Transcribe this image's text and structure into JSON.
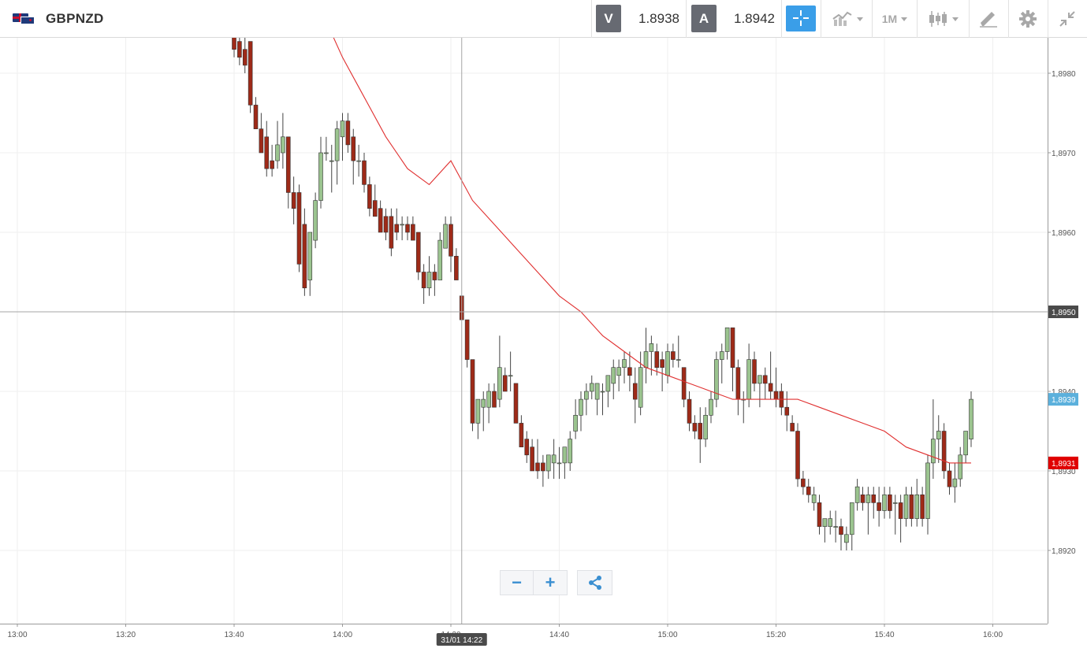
{
  "header": {
    "symbol": "GBPNZD",
    "flag_icon": "gbp-nzd-flag-icon",
    "sell_label": "V",
    "sell_price": "1.8938",
    "buy_label": "A",
    "buy_price": "1.8942",
    "timeframe": "1M",
    "accent_color": "#3a9ee8"
  },
  "chart_data": {
    "type": "candlestick",
    "title": "",
    "x_ticks": [
      "13:00",
      "13:20",
      "13:40",
      "14:00",
      "14:20",
      "14:40",
      "15:00",
      "15:20",
      "15:40",
      "16:00"
    ],
    "y_ticks": [
      "1,8980",
      "1,8970",
      "1,8960",
      "1,8950",
      "1,8940",
      "1,8930",
      "1,8920"
    ],
    "ylim": [
      1.8912,
      1.8984
    ],
    "crosshair": {
      "price_label": "1,8950",
      "time_label": "31/01 14:22",
      "price": 1.895,
      "time": "14:22"
    },
    "last_price_label": {
      "text": "1,8939",
      "value": 1.8939,
      "color": "#5bb0dc"
    },
    "ma_label": {
      "text": "1,8931",
      "value": 1.8931,
      "color": "#e00000"
    },
    "up_color": "#9bc48f",
    "down_color": "#9e2a18",
    "ma_color": "#e03030",
    "candles": [
      [
        "13:40",
        1.8985,
        1.8986,
        1.8982,
        1.8983
      ],
      [
        "13:41",
        1.8984,
        1.8985,
        1.8981,
        1.8982
      ],
      [
        "13:42",
        1.8983,
        1.8985,
        1.898,
        1.8981
      ],
      [
        "13:43",
        1.8984,
        1.8984,
        1.8975,
        1.8976
      ],
      [
        "13:44",
        1.8976,
        1.8977,
        1.8973,
        1.8973
      ],
      [
        "13:45",
        1.8973,
        1.8975,
        1.897,
        1.897
      ],
      [
        "13:46",
        1.8972,
        1.8974,
        1.8967,
        1.8968
      ],
      [
        "13:47",
        1.8969,
        1.8971,
        1.8967,
        1.8968
      ],
      [
        "13:48",
        1.8969,
        1.8974,
        1.8968,
        1.8971
      ],
      [
        "13:49",
        1.897,
        1.8975,
        1.8968,
        1.8972
      ],
      [
        "13:50",
        1.8972,
        1.8972,
        1.8963,
        1.8965
      ],
      [
        "13:51",
        1.8965,
        1.8967,
        1.8961,
        1.8963
      ],
      [
        "13:52",
        1.8965,
        1.8966,
        1.8955,
        1.8956
      ],
      [
        "13:53",
        1.8961,
        1.8963,
        1.8952,
        1.8953
      ],
      [
        "13:54",
        1.8954,
        1.896,
        1.8952,
        1.896
      ],
      [
        "13:55",
        1.8959,
        1.8965,
        1.8958,
        1.8964
      ],
      [
        "13:56",
        1.8964,
        1.8972,
        1.8963,
        1.897
      ],
      [
        "13:57",
        1.897,
        1.8972,
        1.8969,
        1.897
      ],
      [
        "13:58",
        1.8969,
        1.8971,
        1.8965,
        1.8969
      ],
      [
        "13:59",
        1.8969,
        1.8974,
        1.8966,
        1.8973
      ],
      [
        "14:00",
        1.8972,
        1.8975,
        1.8969,
        1.8974
      ],
      [
        "14:01",
        1.8974,
        1.8975,
        1.897,
        1.8971
      ],
      [
        "14:02",
        1.8972,
        1.8973,
        1.8966,
        1.8969
      ],
      [
        "14:03",
        1.8969,
        1.8971,
        1.8967,
        1.8969
      ],
      [
        "14:04",
        1.8969,
        1.897,
        1.8965,
        1.8966
      ],
      [
        "14:05",
        1.8966,
        1.8967,
        1.8962,
        1.8963
      ],
      [
        "14:06",
        1.8964,
        1.8966,
        1.8962,
        1.8962
      ],
      [
        "14:07",
        1.8963,
        1.8964,
        1.896,
        1.896
      ],
      [
        "14:08",
        1.8962,
        1.8963,
        1.8959,
        1.896
      ],
      [
        "14:09",
        1.8962,
        1.8963,
        1.8957,
        1.8958
      ],
      [
        "14:10",
        1.8961,
        1.8963,
        1.8959,
        1.896
      ],
      [
        "14:11",
        1.8961,
        1.8962,
        1.8959,
        1.8961
      ],
      [
        "14:12",
        1.8961,
        1.8962,
        1.8959,
        1.896
      ],
      [
        "14:13",
        1.8961,
        1.8962,
        1.8959,
        1.8959
      ],
      [
        "14:14",
        1.896,
        1.896,
        1.8954,
        1.8955
      ],
      [
        "14:15",
        1.8955,
        1.8956,
        1.8951,
        1.8953
      ],
      [
        "14:16",
        1.8953,
        1.8957,
        1.8952,
        1.8955
      ],
      [
        "14:17",
        1.8955,
        1.8956,
        1.8952,
        1.8954
      ],
      [
        "14:18",
        1.8954,
        1.896,
        1.8954,
        1.8959
      ],
      [
        "14:19",
        1.8958,
        1.8962,
        1.8958,
        1.8961
      ],
      [
        "14:20",
        1.8961,
        1.8962,
        1.8955,
        1.8957
      ],
      [
        "14:21",
        1.8957,
        1.8958,
        1.8954,
        1.8954
      ],
      [
        "14:22",
        1.8952,
        1.8952,
        1.8949,
        1.8949
      ],
      [
        "14:23",
        1.8949,
        1.8949,
        1.8943,
        1.8944
      ],
      [
        "14:24",
        1.8944,
        1.8944,
        1.8935,
        1.8936
      ],
      [
        "14:25",
        1.8936,
        1.8939,
        1.8934,
        1.8939
      ],
      [
        "14:26",
        1.8938,
        1.894,
        1.8935,
        1.8939
      ],
      [
        "14:27",
        1.8938,
        1.8941,
        1.8936,
        1.894
      ],
      [
        "14:28",
        1.894,
        1.8941,
        1.8938,
        1.8938
      ],
      [
        "14:29",
        1.8939,
        1.8947,
        1.8938,
        1.8943
      ],
      [
        "14:30",
        1.8942,
        1.8943,
        1.894,
        1.894
      ],
      [
        "14:31",
        1.8942,
        1.8945,
        1.894,
        1.8942
      ],
      [
        "14:32",
        1.8941,
        1.8941,
        1.8936,
        1.8936
      ],
      [
        "14:33",
        1.8936,
        1.8937,
        1.8933,
        1.8933
      ],
      [
        "14:34",
        1.8934,
        1.8935,
        1.8931,
        1.8932
      ],
      [
        "14:35",
        1.8933,
        1.8934,
        1.893,
        1.893
      ],
      [
        "14:36",
        1.8931,
        1.8934,
        1.8929,
        1.893
      ],
      [
        "14:37",
        1.8931,
        1.8932,
        1.8928,
        1.893
      ],
      [
        "14:38",
        1.893,
        1.8932,
        1.8929,
        1.8932
      ],
      [
        "14:39",
        1.8931,
        1.8934,
        1.8929,
        1.8932
      ],
      [
        "14:40",
        1.8931,
        1.8933,
        1.8929,
        1.8931
      ],
      [
        "14:41",
        1.8931,
        1.8933,
        1.8929,
        1.8933
      ],
      [
        "14:42",
        1.8931,
        1.8935,
        1.893,
        1.8934
      ],
      [
        "14:43",
        1.8935,
        1.8939,
        1.8934,
        1.8937
      ],
      [
        "14:44",
        1.8937,
        1.894,
        1.8935,
        1.8939
      ],
      [
        "14:45",
        1.8939,
        1.8941,
        1.8937,
        1.894
      ],
      [
        "14:46",
        1.894,
        1.8942,
        1.8939,
        1.8941
      ],
      [
        "14:47",
        1.8939,
        1.8941,
        1.8937,
        1.8941
      ],
      [
        "14:48",
        1.894,
        1.8941,
        1.8937,
        1.894
      ],
      [
        "14:49",
        1.894,
        1.8942,
        1.8938,
        1.8942
      ],
      [
        "14:50",
        1.8941,
        1.8944,
        1.8939,
        1.8943
      ],
      [
        "14:51",
        1.8942,
        1.8944,
        1.894,
        1.8943
      ],
      [
        "14:52",
        1.8943,
        1.8945,
        1.8941,
        1.8944
      ],
      [
        "14:53",
        1.8943,
        1.8945,
        1.894,
        1.8942
      ],
      [
        "14:54",
        1.8941,
        1.8943,
        1.8936,
        1.8939
      ],
      [
        "14:55",
        1.8938,
        1.8945,
        1.8937,
        1.8943
      ],
      [
        "14:56",
        1.8943,
        1.8948,
        1.8941,
        1.8945
      ],
      [
        "14:57",
        1.8945,
        1.8947,
        1.8942,
        1.8946
      ],
      [
        "14:58",
        1.8945,
        1.8946,
        1.8942,
        1.8943
      ],
      [
        "14:59",
        1.8944,
        1.8945,
        1.894,
        1.8943
      ],
      [
        "15:00",
        1.8942,
        1.8946,
        1.8941,
        1.8945
      ],
      [
        "15:01",
        1.8945,
        1.8946,
        1.8943,
        1.8944
      ],
      [
        "15:02",
        1.8944,
        1.8947,
        1.8943,
        1.8944
      ],
      [
        "15:03",
        1.8943,
        1.8943,
        1.8938,
        1.8939
      ],
      [
        "15:04",
        1.8939,
        1.894,
        1.8935,
        1.8936
      ],
      [
        "15:05",
        1.8936,
        1.8937,
        1.8934,
        1.8935
      ],
      [
        "15:06",
        1.8936,
        1.8938,
        1.8931,
        1.8934
      ],
      [
        "15:07",
        1.8934,
        1.8938,
        1.8933,
        1.8937
      ],
      [
        "15:08",
        1.8937,
        1.894,
        1.8936,
        1.8939
      ],
      [
        "15:09",
        1.8939,
        1.8945,
        1.8938,
        1.8944
      ],
      [
        "15:10",
        1.8944,
        1.8946,
        1.8941,
        1.8945
      ],
      [
        "15:11",
        1.8945,
        1.8948,
        1.8944,
        1.8948
      ],
      [
        "15:12",
        1.8948,
        1.8948,
        1.894,
        1.8943
      ],
      [
        "15:13",
        1.8943,
        1.8944,
        1.8937,
        1.8939
      ],
      [
        "15:14",
        1.8939,
        1.894,
        1.8936,
        1.8939
      ],
      [
        "15:15",
        1.8939,
        1.8946,
        1.8938,
        1.8944
      ],
      [
        "15:16",
        1.8944,
        1.8945,
        1.894,
        1.8941
      ],
      [
        "15:17",
        1.8941,
        1.8942,
        1.8938,
        1.8942
      ],
      [
        "15:18",
        1.8942,
        1.8943,
        1.8939,
        1.8941
      ],
      [
        "15:19",
        1.8941,
        1.8945,
        1.8939,
        1.894
      ],
      [
        "15:20",
        1.894,
        1.8943,
        1.8938,
        1.8939
      ],
      [
        "15:21",
        1.894,
        1.8941,
        1.8937,
        1.8938
      ],
      [
        "15:22",
        1.8938,
        1.894,
        1.8935,
        1.8937
      ],
      [
        "15:23",
        1.8936,
        1.8937,
        1.8935,
        1.8935
      ],
      [
        "15:24",
        1.8935,
        1.8936,
        1.8928,
        1.8929
      ],
      [
        "15:25",
        1.8929,
        1.893,
        1.8927,
        1.8928
      ],
      [
        "15:26",
        1.8928,
        1.8929,
        1.8926,
        1.8927
      ],
      [
        "15:27",
        1.8926,
        1.8928,
        1.8925,
        1.8927
      ],
      [
        "15:28",
        1.8926,
        1.8927,
        1.8922,
        1.8923
      ],
      [
        "15:29",
        1.8923,
        1.8924,
        1.8921,
        1.8924
      ],
      [
        "15:30",
        1.8923,
        1.8925,
        1.8922,
        1.8924
      ],
      [
        "15:31",
        1.8923,
        1.8925,
        1.8921,
        1.8923
      ],
      [
        "15:32",
        1.8923,
        1.8924,
        1.892,
        1.8922
      ],
      [
        "15:33",
        1.8921,
        1.8923,
        1.892,
        1.8922
      ],
      [
        "15:34",
        1.8922,
        1.8926,
        1.892,
        1.8926
      ],
      [
        "15:35",
        1.8926,
        1.8929,
        1.8925,
        1.8928
      ],
      [
        "15:36",
        1.8927,
        1.8928,
        1.8925,
        1.8926
      ],
      [
        "15:37",
        1.8926,
        1.8928,
        1.8922,
        1.8927
      ],
      [
        "15:38",
        1.8927,
        1.8928,
        1.8924,
        1.8926
      ],
      [
        "15:39",
        1.8926,
        1.8928,
        1.8923,
        1.8925
      ],
      [
        "15:40",
        1.8925,
        1.8928,
        1.8924,
        1.8927
      ],
      [
        "15:41",
        1.8927,
        1.8928,
        1.8924,
        1.8925
      ],
      [
        "15:42",
        1.8926,
        1.8927,
        1.8922,
        1.8926
      ],
      [
        "15:43",
        1.8926,
        1.8927,
        1.8921,
        1.8924
      ],
      [
        "15:44",
        1.8924,
        1.8928,
        1.8923,
        1.8927
      ],
      [
        "15:45",
        1.8927,
        1.8928,
        1.8923,
        1.8924
      ],
      [
        "15:46",
        1.8924,
        1.8929,
        1.8923,
        1.8927
      ],
      [
        "15:47",
        1.8927,
        1.8928,
        1.8923,
        1.8924
      ],
      [
        "15:48",
        1.8924,
        1.8932,
        1.8922,
        1.8931
      ],
      [
        "15:49",
        1.8931,
        1.8939,
        1.8929,
        1.8934
      ],
      [
        "15:50",
        1.8934,
        1.8937,
        1.8931,
        1.8935
      ],
      [
        "15:51",
        1.8935,
        1.8936,
        1.8929,
        1.893
      ],
      [
        "15:52",
        1.893,
        1.8931,
        1.8927,
        1.8928
      ],
      [
        "15:53",
        1.8928,
        1.8931,
        1.8926,
        1.8929
      ],
      [
        "15:54",
        1.8929,
        1.8933,
        1.8928,
        1.8932
      ],
      [
        "15:55",
        1.8932,
        1.8935,
        1.8931,
        1.8935
      ],
      [
        "15:56",
        1.8934,
        1.894,
        1.8933,
        1.8939
      ]
    ],
    "ma_series": [
      [
        "13:58",
        1.8985
      ],
      [
        "14:00",
        1.8982
      ],
      [
        "14:04",
        1.8977
      ],
      [
        "14:08",
        1.8972
      ],
      [
        "14:12",
        1.8968
      ],
      [
        "14:16",
        1.8966
      ],
      [
        "14:20",
        1.8969
      ],
      [
        "14:24",
        1.8964
      ],
      [
        "14:28",
        1.8961
      ],
      [
        "14:32",
        1.8958
      ],
      [
        "14:36",
        1.8955
      ],
      [
        "14:40",
        1.8952
      ],
      [
        "14:44",
        1.895
      ],
      [
        "14:48",
        1.8947
      ],
      [
        "14:52",
        1.8945
      ],
      [
        "14:56",
        1.8943
      ],
      [
        "15:00",
        1.8942
      ],
      [
        "15:04",
        1.8941
      ],
      [
        "15:08",
        1.894
      ],
      [
        "15:12",
        1.8939
      ],
      [
        "15:16",
        1.8939
      ],
      [
        "15:20",
        1.8939
      ],
      [
        "15:24",
        1.8939
      ],
      [
        "15:28",
        1.8938
      ],
      [
        "15:32",
        1.8937
      ],
      [
        "15:36",
        1.8936
      ],
      [
        "15:40",
        1.8935
      ],
      [
        "15:44",
        1.8933
      ],
      [
        "15:48",
        1.8932
      ],
      [
        "15:52",
        1.8931
      ],
      [
        "15:56",
        1.8931
      ]
    ]
  },
  "controls": {
    "zoom_out": "−",
    "zoom_in": "+",
    "share_icon": "share-icon"
  }
}
